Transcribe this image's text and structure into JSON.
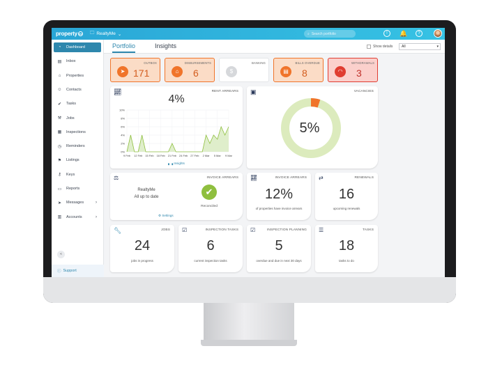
{
  "topbar": {
    "logo": "property",
    "logo_badge": "me",
    "account": "RealtyMe",
    "search_placeholder": "Search portfolio"
  },
  "sidebar": {
    "items": [
      {
        "label": "Dashboard",
        "icon": "gauge-icon"
      },
      {
        "label": "Inbox",
        "icon": "inbox-icon"
      },
      {
        "label": "Properties",
        "icon": "home-icon"
      },
      {
        "label": "Contacts",
        "icon": "person-icon"
      },
      {
        "label": "Tasks",
        "icon": "check-circle-icon"
      },
      {
        "label": "Jobs",
        "icon": "wrench-icon"
      },
      {
        "label": "Inspections",
        "icon": "calendar-icon"
      },
      {
        "label": "Reminders",
        "icon": "clock-icon"
      },
      {
        "label": "Listings",
        "icon": "flag-icon"
      },
      {
        "label": "Keys",
        "icon": "key-icon"
      },
      {
        "label": "Reports",
        "icon": "folder-icon"
      },
      {
        "label": "Messages",
        "icon": "send-icon"
      },
      {
        "label": "Accounts",
        "icon": "ledger-icon"
      }
    ],
    "collapse": "«",
    "support": "Support"
  },
  "tabs": {
    "portfolio": "Portfolio",
    "insights": "Insights",
    "show_details": "Show details",
    "filter_value": "All"
  },
  "tiles": [
    {
      "label": "OUTBOX",
      "value": "171",
      "bg": "#fbdcc6",
      "accent": "#f0742a"
    },
    {
      "label": "DISBURSEMENTS",
      "value": "6",
      "bg": "#fbdcc6",
      "accent": "#f0742a"
    },
    {
      "label": "BANKING",
      "value": "",
      "bg": "#ffffff",
      "accent": "#d6d8db"
    },
    {
      "label": "BILLS OVERDUE",
      "value": "8",
      "bg": "#fbdcc6",
      "accent": "#f0742a"
    },
    {
      "label": "WITHDRAWALS",
      "value": "3",
      "bg": "#fbd0cc",
      "accent": "#e03c31"
    }
  ],
  "rent_arrears": {
    "title": "RENT ARREARS",
    "value": "4%",
    "link": "Insights"
  },
  "chart_data": {
    "type": "area",
    "x": [
      "9 Feb",
      "",
      "",
      "12 Feb",
      "",
      "",
      "15 Feb",
      "",
      "",
      "18 Feb",
      "",
      "",
      "21 Feb",
      "",
      "",
      "24 Feb",
      "",
      "",
      "27 Feb",
      "",
      "",
      "2 Mar",
      "",
      "",
      "5 Mar",
      "",
      "",
      "9 Mar"
    ],
    "xticks": [
      "9 Feb",
      "12 Feb",
      "15 Feb",
      "18 Feb",
      "21 Feb",
      "24 Feb",
      "27 Feb",
      "2 Mar",
      "5 Mar",
      "9 Mar"
    ],
    "values": [
      0,
      4,
      0,
      0,
      4,
      0,
      0,
      0,
      0,
      0,
      0,
      0,
      2,
      0,
      0,
      0,
      0,
      0,
      0,
      0,
      0,
      4,
      2,
      4,
      3,
      6,
      4,
      6
    ],
    "yticks": [
      "0%",
      "2%",
      "4%",
      "6%",
      "8%",
      "10%"
    ],
    "ylim": [
      0,
      10
    ],
    "color": "#8fbf3f",
    "fill": "#dfeecb"
  },
  "vacancies": {
    "title": "VACANCIES",
    "value": "5%",
    "fraction": 0.05,
    "ring_color": "#dcebbd",
    "accent": "#f0742a"
  },
  "invoice_arrears_status": {
    "title": "INVOICE ARREARS",
    "org": "RealtyMe",
    "status": "All up to date",
    "reconciled": "Reconciled",
    "settings": "Settings"
  },
  "invoice_arrears_pct": {
    "title": "INVOICE ARREARS",
    "value": "12%",
    "sub": "of properties have invoice arrears"
  },
  "renewals": {
    "title": "RENEWALS",
    "value": "16",
    "sub": "upcoming renewals"
  },
  "jobs": {
    "title": "JOBS",
    "value": "24",
    "sub": "jobs in progress"
  },
  "inspection_tasks": {
    "title": "INSPECTION TASKS",
    "value": "6",
    "sub": "current inspection tasks"
  },
  "inspection_planning": {
    "title": "INSPECTION PLANNING",
    "value": "5",
    "sub": "overdue and due in next 30 days"
  },
  "tasks": {
    "title": "TASKS",
    "value": "18",
    "sub": "tasks to do"
  }
}
